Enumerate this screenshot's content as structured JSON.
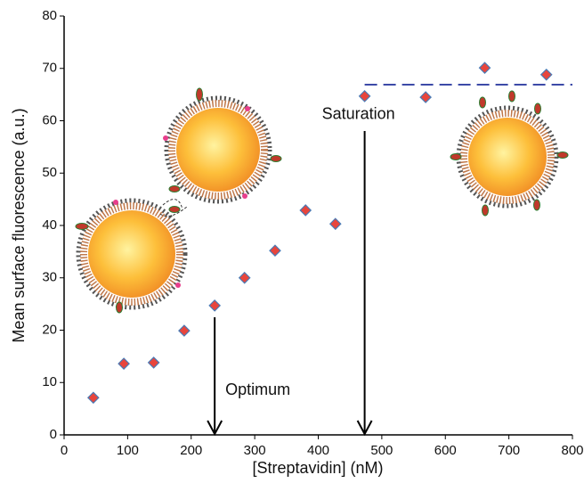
{
  "chart_data": {
    "type": "scatter",
    "x": [
      46,
      94,
      141,
      189,
      237,
      284,
      332,
      380,
      427,
      473,
      569,
      662,
      759
    ],
    "values": [
      7.1,
      13.6,
      13.8,
      19.9,
      24.7,
      30.0,
      35.2,
      42.9,
      40.3,
      64.7,
      64.5,
      70.1,
      68.8
    ],
    "color": "#e8453c",
    "edge_color": "#4a7ab5",
    "xlabel": "[Streptavidin] (nM)",
    "ylabel": "Mean surface fluorescence (a.u.)",
    "xlim": [
      0,
      800
    ],
    "ylim": [
      0,
      80
    ],
    "xticks": [
      0,
      100,
      200,
      300,
      400,
      500,
      600,
      700,
      800
    ],
    "yticks": [
      0,
      10,
      20,
      30,
      40,
      50,
      60,
      70,
      80
    ],
    "saturation_level": 66.9,
    "saturation_start": 473,
    "annotations": [
      {
        "text": "Optimum",
        "x": 237
      },
      {
        "text": "Saturation",
        "x": 473
      }
    ]
  }
}
